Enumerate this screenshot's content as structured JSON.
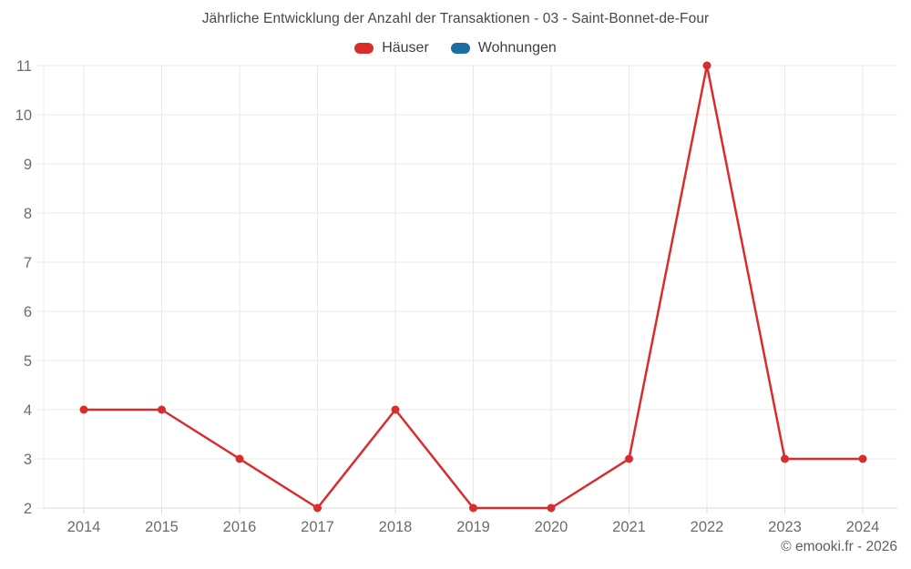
{
  "title": "Jährliche Entwicklung der Anzahl der Transaktionen - 03 - Saint-Bonnet-de-Four",
  "footer": {
    "credit": "© emooki.fr - 2026"
  },
  "colors": {
    "haeuser_red": "#d92c2c",
    "wohnungen_blue": "#1c6ea0",
    "grid": "#e9e9e9",
    "axis_line": "#d9d9d9",
    "axis_text": "#6b6b72"
  },
  "chart_data": {
    "type": "line",
    "title": "Jährliche Entwicklung der Anzahl der Transaktionen - 03 - Saint-Bonnet-de-Four",
    "categories": [
      "2014",
      "2015",
      "2016",
      "2017",
      "2018",
      "2019",
      "2020",
      "2021",
      "2022",
      "2023",
      "2024"
    ],
    "series": [
      {
        "name": "Häuser",
        "color": "#d92c2c",
        "values": [
          4,
          4,
          3,
          2,
          4,
          2,
          2,
          3,
          11,
          3,
          3
        ]
      },
      {
        "name": "Wohnungen",
        "color": "#1c6ea0",
        "values": []
      }
    ],
    "xlabel": "",
    "ylabel": "",
    "ylim": [
      2,
      11
    ],
    "ytick_step": 1,
    "grid": true,
    "legend_position": "top",
    "marker": "circle"
  }
}
